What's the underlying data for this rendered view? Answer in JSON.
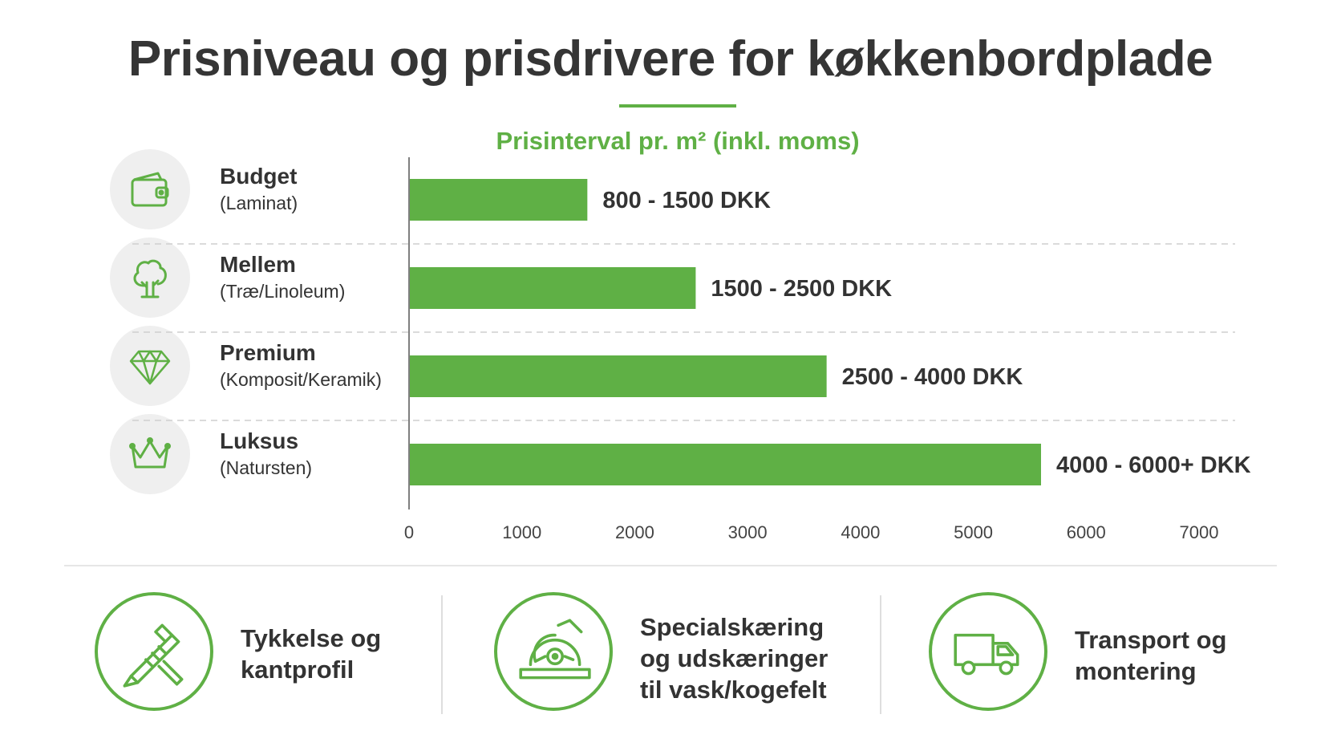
{
  "title": "Prisniveau og prisdrivere for køkkenbordplade",
  "colors": {
    "accent": "#5fb045",
    "text": "#333333",
    "icon_bg": "#efefef"
  },
  "chart_data": {
    "type": "bar",
    "orientation": "horizontal",
    "title": "Prisinterval pr. m² (inkl. moms)",
    "categories": [
      {
        "name": "Budget",
        "sub": "(Laminat)",
        "icon": "wallet-icon"
      },
      {
        "name": "Mellem",
        "sub": "(Træ/Linoleum)",
        "icon": "tree-icon"
      },
      {
        "name": "Premium",
        "sub": "(Komposit/Keramik)",
        "icon": "diamond-icon"
      },
      {
        "name": "Luksus",
        "sub": "(Natursten)",
        "icon": "crown-icon"
      }
    ],
    "values": [
      1580,
      2540,
      3700,
      5600
    ],
    "data_labels": [
      "800 - 1500 DKK",
      "1500 - 2500 DKK",
      "2500 - 4000 DKK",
      "4000 - 6000+ DKK"
    ],
    "xlim": [
      0,
      7000
    ],
    "xticks": [
      0,
      1000,
      2000,
      3000,
      4000,
      5000,
      6000,
      7000
    ],
    "xlabel": "",
    "ylabel": "",
    "grid": false,
    "legend": "none"
  },
  "drivers": [
    {
      "icon": "caliper-icon",
      "label": "Tykkelse og\nkantprofil"
    },
    {
      "icon": "circular-saw-icon",
      "label": "Specialskæring\nog udskæringer\ntil vask/kogefelt"
    },
    {
      "icon": "truck-icon",
      "label": "Transport og\nmontering"
    }
  ]
}
